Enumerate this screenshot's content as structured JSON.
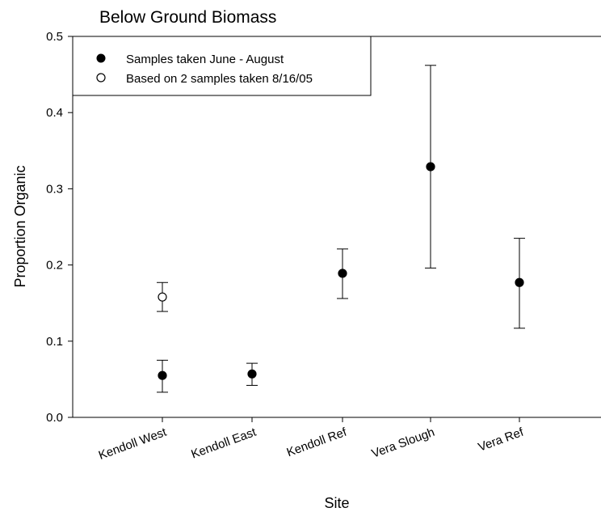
{
  "chart_data": {
    "type": "scatter",
    "title": "Below Ground Biomass",
    "xlabel": "Site",
    "ylabel": "Proportion Organic",
    "categories": [
      "Kendoll West",
      "Kendoll East",
      "Kendoll Ref",
      "Vera Slough",
      "Vera Ref"
    ],
    "ylim": [
      0.0,
      0.5
    ],
    "yticks": [
      "0.0",
      "0.1",
      "0.2",
      "0.3",
      "0.4",
      "0.5"
    ],
    "grid": false,
    "legend_position": "top-left",
    "series": [
      {
        "name": "Samples taken June - August",
        "marker": "filled-circle",
        "color": "#000000",
        "points": [
          {
            "category": "Kendoll West",
            "y": 0.055,
            "err_low": 0.033,
            "err_high": 0.075
          },
          {
            "category": "Kendoll East",
            "y": 0.057,
            "err_low": 0.042,
            "err_high": 0.071
          },
          {
            "category": "Kendoll Ref",
            "y": 0.189,
            "err_low": 0.156,
            "err_high": 0.221
          },
          {
            "category": "Vera Slough",
            "y": 0.329,
            "err_low": 0.196,
            "err_high": 0.462
          },
          {
            "category": "Vera Ref",
            "y": 0.177,
            "err_low": 0.117,
            "err_high": 0.235
          }
        ]
      },
      {
        "name": "Based on 2 samples taken 8/16/05",
        "marker": "open-circle",
        "color": "#000000",
        "points": [
          {
            "category": "Kendoll West",
            "y": 0.158,
            "err_low": 0.139,
            "err_high": 0.177
          }
        ]
      }
    ]
  }
}
